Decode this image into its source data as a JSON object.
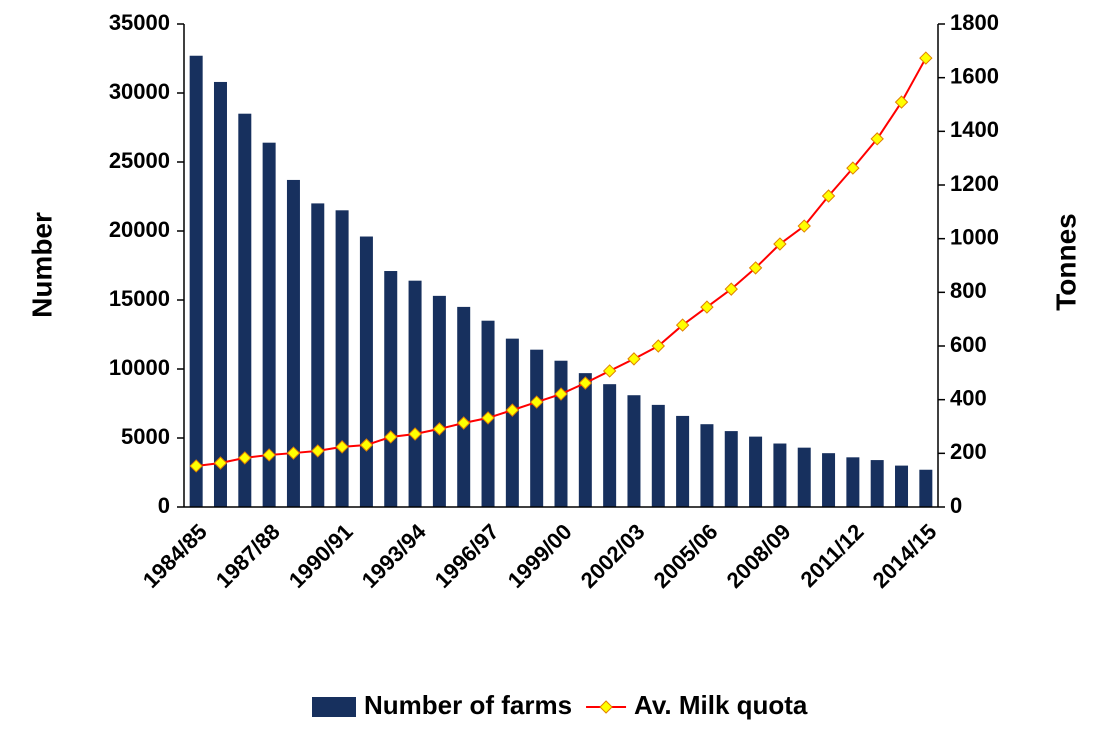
{
  "chart_data": {
    "type": "bar_line",
    "y_label": "Number",
    "y2_label": "Tonnes",
    "categories": [
      "1984/85",
      null,
      null,
      "1987/88",
      null,
      null,
      "1990/91",
      null,
      null,
      "1993/94",
      null,
      null,
      "1996/97",
      null,
      null,
      "1999/00",
      null,
      null,
      "2002/03",
      null,
      null,
      "2005/06",
      null,
      null,
      "2008/09",
      null,
      null,
      "2011/12",
      null,
      null,
      "2014/15"
    ],
    "series": [
      {
        "name": "Number of farms",
        "type": "bar",
        "color": "#17305e",
        "values": [
          32700,
          30800,
          28500,
          26400,
          23700,
          22000,
          21500,
          19600,
          17100,
          16400,
          15300,
          14500,
          13500,
          12200,
          11400,
          10600,
          9700,
          8900,
          8100,
          7400,
          6600,
          6000,
          5500,
          5100,
          4600,
          4300,
          3900,
          3600,
          3400,
          3000,
          2700
        ]
      },
      {
        "name": "Av. Milk quota",
        "type": "line",
        "axis": "y2",
        "color": "#ff0000",
        "marker_color": "#ffff00",
        "values": [
          153,
          164,
          183,
          194,
          201,
          209,
          224,
          231,
          261,
          272,
          291,
          313,
          332,
          361,
          391,
          421,
          462,
          507,
          552,
          600,
          678,
          745,
          812,
          891,
          980,
          1047,
          1159,
          1263,
          1372,
          1509,
          1673
        ]
      }
    ],
    "ylim": [
      0,
      35000
    ],
    "yticks": [
      0,
      5000,
      10000,
      15000,
      20000,
      25000,
      30000,
      35000
    ],
    "y2lim": [
      0,
      1800
    ],
    "y2ticks": [
      0,
      200,
      400,
      600,
      800,
      1000,
      1200,
      1400,
      1600,
      1800
    ],
    "legend": "bottom"
  }
}
